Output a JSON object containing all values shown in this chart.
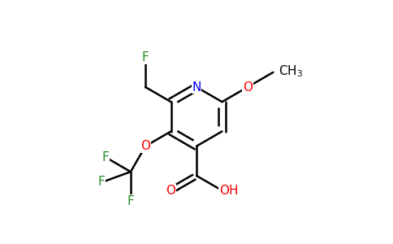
{
  "bg_color": "#ffffff",
  "atom_colors": {
    "C": "#000000",
    "N": "#0000ff",
    "O": "#ff0000",
    "F": "#228B22",
    "H": "#000000"
  },
  "figsize": [
    4.84,
    3.0
  ],
  "dpi": 100,
  "lw": 1.8,
  "fontsize": 11
}
